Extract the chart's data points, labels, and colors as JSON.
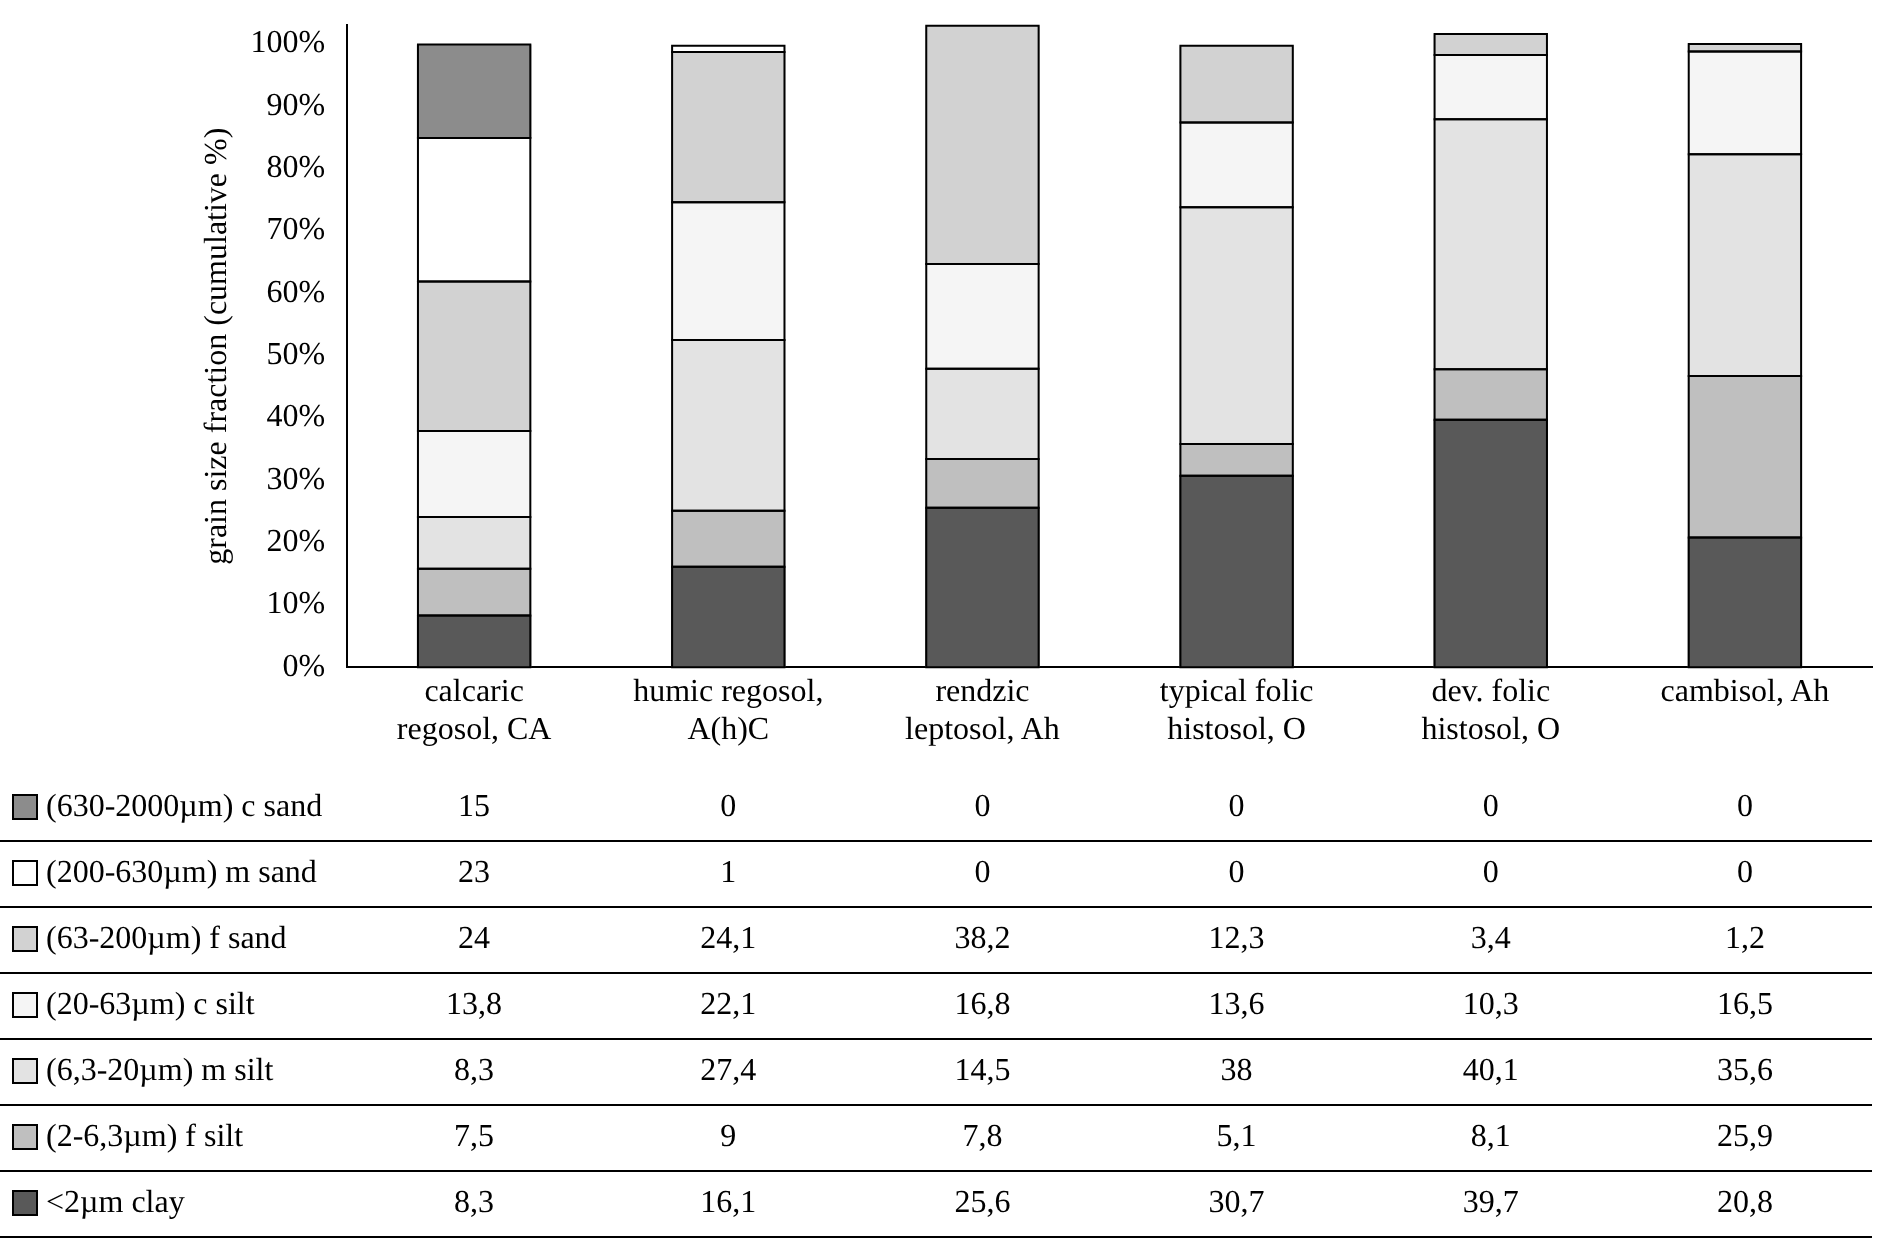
{
  "chart_data": {
    "type": "bar",
    "stacked": true,
    "ylabel": "grain size fraction (cumulative %)",
    "categories": [
      [
        "calcaric",
        "regosol, CA"
      ],
      [
        "humic regosol,",
        "A(h)C"
      ],
      [
        "rendzic",
        "leptosol, Ah"
      ],
      [
        "typical folic",
        "histosol, O"
      ],
      [
        "dev. folic",
        "histosol, O"
      ],
      "cambisol, Ah"
    ],
    "series": [
      {
        "name": "<2µm clay",
        "color": "#595959",
        "values": [
          8.3,
          16.1,
          25.6,
          30.7,
          39.7,
          20.8
        ],
        "value_labels": [
          "8,3",
          "16,1",
          "25,6",
          "30,7",
          "39,7",
          "20,8"
        ]
      },
      {
        "name": "(2-6,3µm) f silt",
        "color": "#bfbfbf",
        "values": [
          7.5,
          9,
          7.8,
          5.1,
          8.1,
          25.9
        ],
        "value_labels": [
          "7,5",
          "9",
          "7,8",
          "5,1",
          "8,1",
          "25,9"
        ]
      },
      {
        "name": "(6,3-20µm) m silt",
        "color": "#e3e3e3",
        "values": [
          8.3,
          27.4,
          14.5,
          38,
          40.1,
          35.6
        ],
        "value_labels": [
          "8,3",
          "27,4",
          "14,5",
          "38",
          "40,1",
          "35,6"
        ]
      },
      {
        "name": "(20-63µm) c silt",
        "color": "#f5f5f5",
        "values": [
          13.8,
          22.1,
          16.8,
          13.6,
          10.3,
          16.5
        ],
        "value_labels": [
          "13,8",
          "22,1",
          "16,8",
          "13,6",
          "10,3",
          "16,5"
        ]
      },
      {
        "name": "(63-200µm) f sand",
        "color": "#d2d2d2",
        "values": [
          24,
          24.1,
          38.2,
          12.3,
          3.4,
          1.2
        ],
        "value_labels": [
          "24",
          "24,1",
          "38,2",
          "12,3",
          "3,4",
          "1,2"
        ]
      },
      {
        "name": "(200-630µm) m sand",
        "color": "#ffffff",
        "values": [
          23,
          1,
          0,
          0,
          0,
          0
        ],
        "value_labels": [
          "23",
          "1",
          "0",
          "0",
          "0",
          "0"
        ]
      },
      {
        "name": "(630-2000µm) c sand",
        "color": "#8c8c8c",
        "values": [
          15,
          0,
          0,
          0,
          0,
          0
        ],
        "value_labels": [
          "15",
          "0",
          "0",
          "0",
          "0",
          "0"
        ]
      }
    ],
    "ylim": [
      0,
      103
    ],
    "yticks": [
      {
        "value": 0,
        "label": "0%"
      },
      {
        "value": 10,
        "label": "10%"
      },
      {
        "value": 20,
        "label": "20%"
      },
      {
        "value": 30,
        "label": "30%"
      },
      {
        "value": 40,
        "label": "40%"
      },
      {
        "value": 50,
        "label": "50%"
      },
      {
        "value": 60,
        "label": "60%"
      },
      {
        "value": 70,
        "label": "70%"
      },
      {
        "value": 80,
        "label": "80%"
      },
      {
        "value": 90,
        "label": "90%"
      },
      {
        "value": 100,
        "label": "100%"
      }
    ],
    "grid": false,
    "legend": "bottom"
  }
}
